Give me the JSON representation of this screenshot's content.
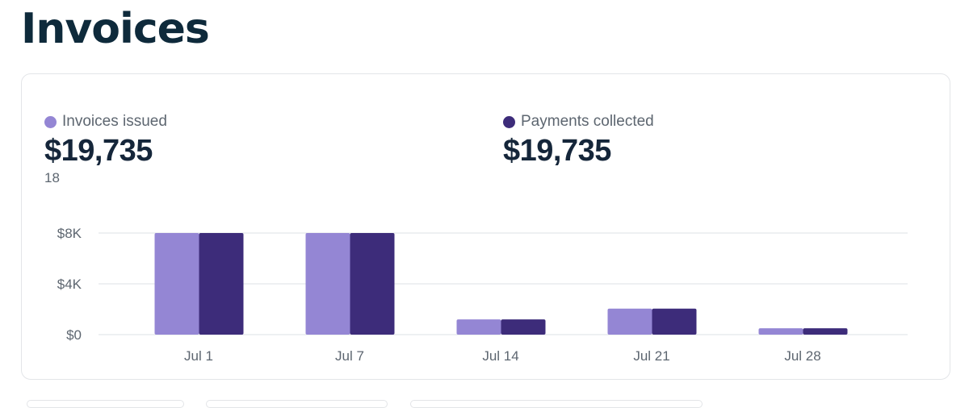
{
  "header": {
    "title": "Invoices"
  },
  "metrics": {
    "issued": {
      "label": "Invoices issued",
      "value": "$19,735",
      "count": "18",
      "color": "#9486d4"
    },
    "collected": {
      "label": "Payments collected",
      "value": "$19,735",
      "color": "#3d2c7a"
    }
  },
  "chart_data": {
    "type": "bar",
    "categories": [
      "Jul 1",
      "Jul 7",
      "Jul 14",
      "Jul 21",
      "Jul 28"
    ],
    "series": [
      {
        "name": "Invoices issued",
        "color": "#9486d4",
        "values": [
          8000,
          8000,
          1200,
          2050,
          500
        ]
      },
      {
        "name": "Payments collected",
        "color": "#3d2c7a",
        "values": [
          8000,
          8000,
          1200,
          2050,
          500
        ]
      }
    ],
    "yticks": [
      {
        "value": 0,
        "label": "$0"
      },
      {
        "value": 4000,
        "label": "$4K"
      },
      {
        "value": 8000,
        "label": "$8K"
      }
    ],
    "ylim": [
      0,
      8000
    ],
    "grid": true,
    "legend": "top-left"
  }
}
